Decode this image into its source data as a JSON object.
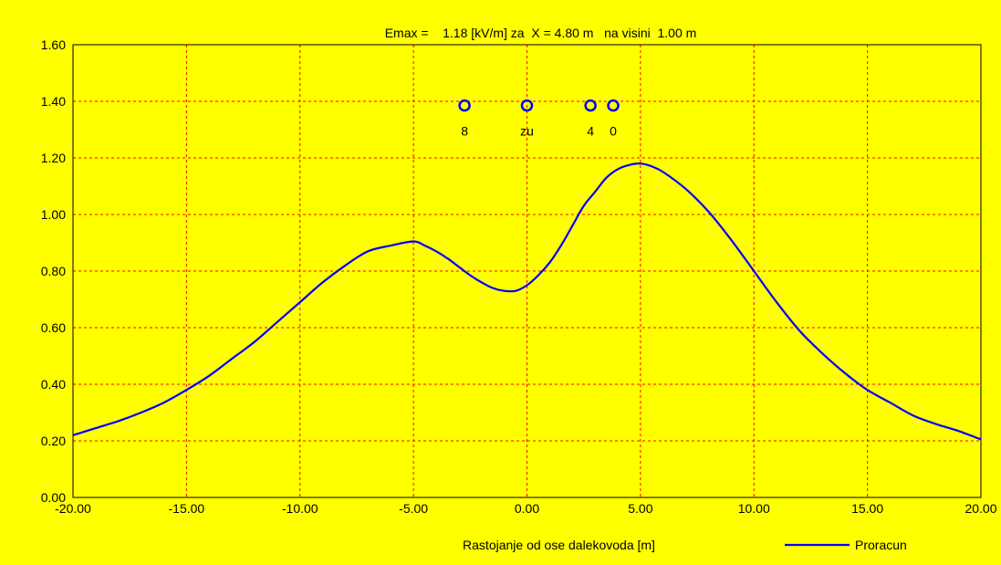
{
  "chart_data": {
    "type": "line",
    "title": "Emax =    1.18 [kV/m] za  X = 4.80 m   na visini  1.00 m",
    "xlabel": "Rastojanje od ose dalekovoda [m]",
    "ylabel": "",
    "xlim": [
      -20,
      20
    ],
    "ylim": [
      0,
      1.6
    ],
    "grid": true,
    "x_ticks": [
      -20,
      -15,
      -10,
      -5,
      0,
      5,
      10,
      15,
      20
    ],
    "x_tick_labels": [
      "-20.00",
      "-15.00",
      "-10.00",
      "-5.00",
      "0.00",
      "5.00",
      "10.00",
      "15.00",
      "20.00"
    ],
    "y_ticks": [
      0,
      0.2,
      0.4,
      0.6,
      0.8,
      1.0,
      1.2,
      1.4,
      1.6
    ],
    "y_tick_labels": [
      "0.00",
      "0.20",
      "0.40",
      "0.60",
      "0.80",
      "1.00",
      "1.20",
      "1.40",
      "1.60"
    ],
    "legend_position": "bottom-right",
    "series": [
      {
        "name": "Proracun",
        "color": "#0000ff",
        "x": [
          -20,
          -19,
          -18,
          -17,
          -16,
          -15,
          -14,
          -13,
          -12,
          -11,
          -10,
          -9,
          -8,
          -7,
          -6,
          -5,
          -4.5,
          -4,
          -3.5,
          -3,
          -2.5,
          -2,
          -1.5,
          -1,
          -0.5,
          0,
          0.5,
          1,
          1.5,
          2,
          2.5,
          3,
          3.5,
          4,
          4.5,
          5,
          5.5,
          6,
          7,
          8,
          9,
          10,
          11,
          12,
          13,
          14,
          15,
          16,
          17,
          18,
          19,
          20
        ],
        "y": [
          0.22,
          0.245,
          0.27,
          0.3,
          0.335,
          0.38,
          0.43,
          0.49,
          0.55,
          0.62,
          0.69,
          0.76,
          0.82,
          0.87,
          0.89,
          0.905,
          0.89,
          0.87,
          0.845,
          0.815,
          0.785,
          0.76,
          0.74,
          0.73,
          0.73,
          0.75,
          0.785,
          0.83,
          0.89,
          0.96,
          1.03,
          1.08,
          1.13,
          1.16,
          1.175,
          1.18,
          1.17,
          1.15,
          1.09,
          1.01,
          0.91,
          0.8,
          0.69,
          0.59,
          0.51,
          0.44,
          0.38,
          0.335,
          0.29,
          0.26,
          0.235,
          0.205
        ]
      }
    ],
    "conductors": [
      {
        "x": -2.75,
        "y": 1.385,
        "label": "8"
      },
      {
        "x": 0.0,
        "y": 1.385,
        "label": "zu"
      },
      {
        "x": 2.8,
        "y": 1.385,
        "label": "4"
      },
      {
        "x": 3.8,
        "y": 1.385,
        "label": "0"
      }
    ],
    "colors": {
      "background": "#ffff00",
      "grid": "#ff0000",
      "axis": "#000000",
      "line": "#0000ff",
      "marker": "#0000ff"
    }
  }
}
